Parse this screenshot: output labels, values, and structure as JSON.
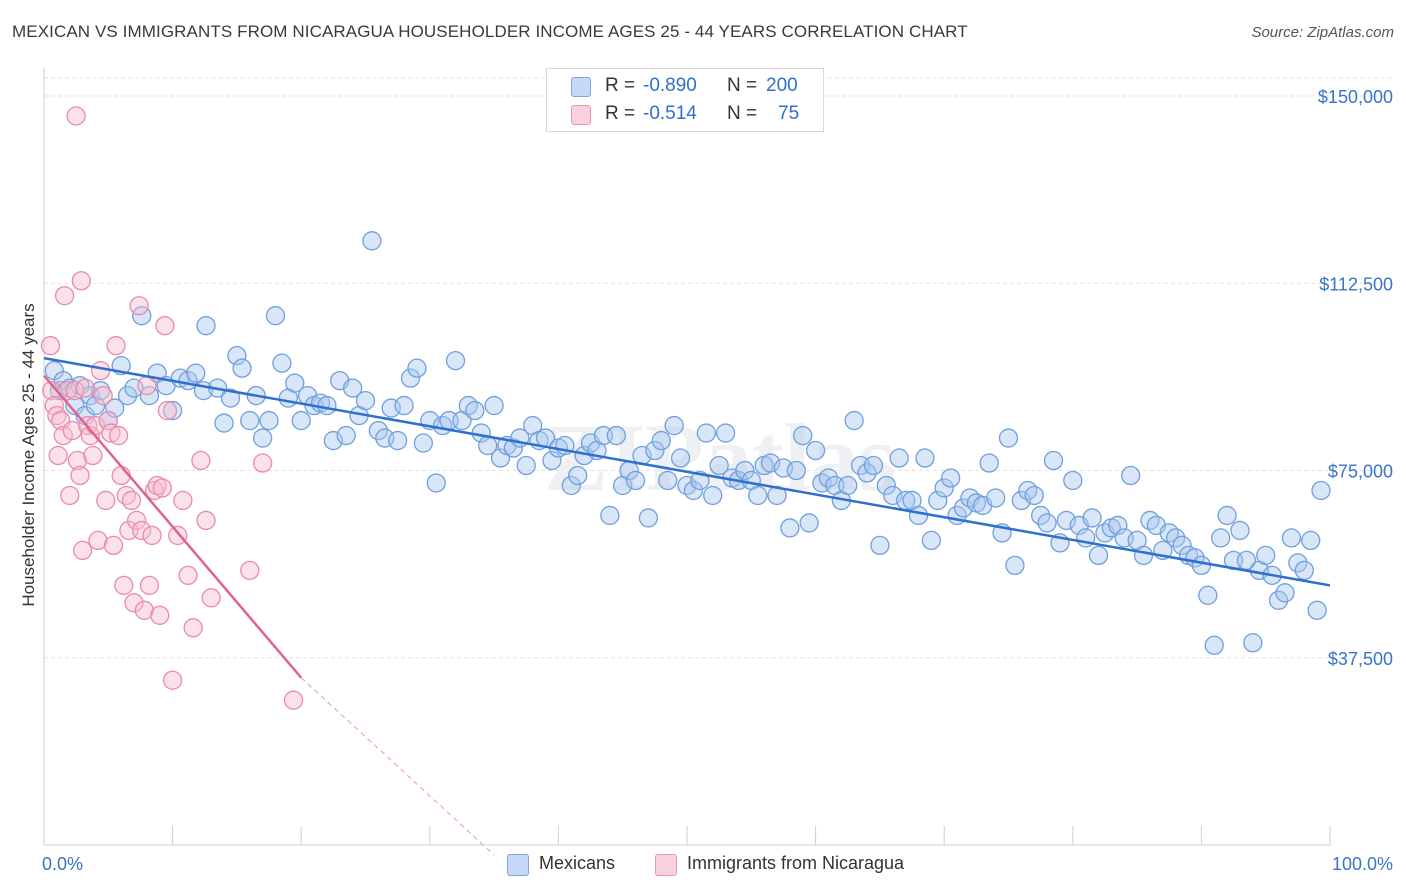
{
  "title": "MEXICAN VS IMMIGRANTS FROM NICARAGUA HOUSEHOLDER INCOME AGES 25 - 44 YEARS CORRELATION CHART",
  "source": "Source: ZipAtlas.com",
  "watermark": "ZIPatlas",
  "legend_top": {
    "rows": [
      {
        "r_label": "R =",
        "r_value": "-0.890",
        "n_label": "N =",
        "n_value": "200"
      },
      {
        "r_label": "R =",
        "r_value": "-0.514",
        "n_label": "N =",
        "n_value": "75"
      }
    ]
  },
  "colors": {
    "blue_fill": "#a9c7ef",
    "blue_stroke": "#6f9fdc",
    "blue_line": "#2f6fce",
    "pink_fill": "#f6bfd0",
    "pink_stroke": "#e98aab",
    "pink_line": "#e0628e",
    "grid": "#e2e2e2",
    "axis_text": "#3b73c9"
  },
  "chart_data": {
    "type": "scatter",
    "title": "MEXICAN VS IMMIGRANTS FROM NICARAGUA HOUSEHOLDER INCOME AGES 25 - 44 YEARS CORRELATION CHART",
    "xlabel": "",
    "ylabel": "Householder Income Ages 25 - 44 years",
    "xlim": [
      0,
      100
    ],
    "ylim": [
      0,
      155000
    ],
    "x_tick_labels": [
      "0.0%",
      "100.0%"
    ],
    "y_ticks": [
      37500,
      75000,
      112500,
      150000
    ],
    "y_tick_labels": [
      "$37,500",
      "$75,000",
      "$112,500",
      "$150,000"
    ],
    "grid": true,
    "legend_placement": "bottom",
    "series": [
      {
        "name": "Mexicans",
        "trend": {
          "x": [
            0,
            100
          ],
          "y": [
            97500,
            52000
          ]
        },
        "points": [
          [
            0.8,
            95000
          ],
          [
            1.2,
            91000
          ],
          [
            1.5,
            93000
          ],
          [
            2.0,
            91500
          ],
          [
            2.4,
            88000
          ],
          [
            2.8,
            92000
          ],
          [
            3.2,
            86000
          ],
          [
            3.6,
            90000
          ],
          [
            4.0,
            88000
          ],
          [
            4.4,
            91000
          ],
          [
            5.0,
            85000
          ],
          [
            5.5,
            87500
          ],
          [
            6.0,
            96000
          ],
          [
            6.5,
            90000
          ],
          [
            7.0,
            91500
          ],
          [
            7.6,
            106000
          ],
          [
            8.2,
            90000
          ],
          [
            8.8,
            94500
          ],
          [
            9.5,
            92000
          ],
          [
            10.0,
            87000
          ],
          [
            10.6,
            93500
          ],
          [
            11.2,
            93000
          ],
          [
            11.8,
            94500
          ],
          [
            12.4,
            91000
          ],
          [
            12.6,
            104000
          ],
          [
            13.5,
            91500
          ],
          [
            14.0,
            84500
          ],
          [
            14.5,
            89500
          ],
          [
            15.0,
            98000
          ],
          [
            15.4,
            95500
          ],
          [
            16.0,
            85000
          ],
          [
            16.5,
            90000
          ],
          [
            17.0,
            81500
          ],
          [
            17.5,
            85000
          ],
          [
            18.0,
            106000
          ],
          [
            18.5,
            96500
          ],
          [
            19.0,
            89500
          ],
          [
            19.5,
            92500
          ],
          [
            20.0,
            85000
          ],
          [
            20.5,
            90000
          ],
          [
            21.0,
            88000
          ],
          [
            21.5,
            88500
          ],
          [
            22.0,
            88000
          ],
          [
            22.5,
            81000
          ],
          [
            23.0,
            93000
          ],
          [
            23.5,
            82000
          ],
          [
            24.0,
            91500
          ],
          [
            24.5,
            86000
          ],
          [
            25.0,
            89000
          ],
          [
            25.5,
            121000
          ],
          [
            26.0,
            83000
          ],
          [
            26.5,
            81500
          ],
          [
            27.0,
            87500
          ],
          [
            27.5,
            81000
          ],
          [
            28.0,
            88000
          ],
          [
            28.5,
            93500
          ],
          [
            29.0,
            95500
          ],
          [
            29.5,
            80500
          ],
          [
            30.0,
            85000
          ],
          [
            30.5,
            72500
          ],
          [
            31.0,
            84000
          ],
          [
            31.5,
            85000
          ],
          [
            32.0,
            97000
          ],
          [
            32.5,
            85000
          ],
          [
            33.0,
            88000
          ],
          [
            33.5,
            87000
          ],
          [
            34.0,
            82500
          ],
          [
            34.5,
            80000
          ],
          [
            35.0,
            88000
          ],
          [
            35.5,
            77500
          ],
          [
            36.0,
            80000
          ],
          [
            36.5,
            79500
          ],
          [
            37.0,
            81500
          ],
          [
            37.5,
            76000
          ],
          [
            38.0,
            84000
          ],
          [
            38.5,
            81000
          ],
          [
            39.0,
            81500
          ],
          [
            39.5,
            77000
          ],
          [
            40.0,
            79500
          ],
          [
            40.5,
            80000
          ],
          [
            41.0,
            72000
          ],
          [
            41.5,
            74000
          ],
          [
            42.0,
            78000
          ],
          [
            42.5,
            80500
          ],
          [
            43.0,
            79000
          ],
          [
            43.5,
            82000
          ],
          [
            44.0,
            66000
          ],
          [
            44.5,
            82000
          ],
          [
            45.0,
            72000
          ],
          [
            45.5,
            75000
          ],
          [
            46.0,
            73000
          ],
          [
            46.5,
            78000
          ],
          [
            47.0,
            65500
          ],
          [
            47.5,
            79000
          ],
          [
            48.0,
            81000
          ],
          [
            48.5,
            73000
          ],
          [
            49.0,
            84000
          ],
          [
            49.5,
            77500
          ],
          [
            50.0,
            72000
          ],
          [
            50.5,
            71000
          ],
          [
            51.0,
            73000
          ],
          [
            51.5,
            82500
          ],
          [
            52.0,
            70000
          ],
          [
            52.5,
            76000
          ],
          [
            53.0,
            82500
          ],
          [
            53.5,
            73500
          ],
          [
            54.0,
            73000
          ],
          [
            54.5,
            75000
          ],
          [
            55.0,
            73000
          ],
          [
            55.5,
            70000
          ],
          [
            56.0,
            76000
          ],
          [
            56.5,
            76500
          ],
          [
            57.0,
            70000
          ],
          [
            57.5,
            75500
          ],
          [
            58.0,
            63500
          ],
          [
            58.5,
            75000
          ],
          [
            59.0,
            82000
          ],
          [
            59.5,
            64500
          ],
          [
            60.0,
            79000
          ],
          [
            60.5,
            72500
          ],
          [
            61.0,
            73500
          ],
          [
            61.5,
            72000
          ],
          [
            62.0,
            69000
          ],
          [
            62.5,
            72000
          ],
          [
            63.0,
            85000
          ],
          [
            63.5,
            76000
          ],
          [
            64.0,
            74500
          ],
          [
            64.5,
            76000
          ],
          [
            65.0,
            60000
          ],
          [
            65.5,
            72000
          ],
          [
            66.0,
            70000
          ],
          [
            66.5,
            77500
          ],
          [
            67.0,
            69000
          ],
          [
            67.5,
            69000
          ],
          [
            68.0,
            66000
          ],
          [
            68.5,
            77500
          ],
          [
            69.0,
            61000
          ],
          [
            69.5,
            69000
          ],
          [
            70.0,
            71500
          ],
          [
            70.5,
            73500
          ],
          [
            71.0,
            66000
          ],
          [
            71.5,
            67500
          ],
          [
            72.0,
            69500
          ],
          [
            72.5,
            68500
          ],
          [
            73.0,
            68000
          ],
          [
            73.5,
            76500
          ],
          [
            74.0,
            69500
          ],
          [
            74.5,
            62500
          ],
          [
            75.0,
            81500
          ],
          [
            75.5,
            56000
          ],
          [
            76.0,
            69000
          ],
          [
            76.5,
            71000
          ],
          [
            77.0,
            70000
          ],
          [
            77.5,
            66000
          ],
          [
            78.0,
            64500
          ],
          [
            78.5,
            77000
          ],
          [
            79.0,
            60500
          ],
          [
            79.5,
            65000
          ],
          [
            80.0,
            73000
          ],
          [
            80.5,
            64000
          ],
          [
            81.0,
            61500
          ],
          [
            81.5,
            65500
          ],
          [
            82.0,
            58000
          ],
          [
            82.5,
            62500
          ],
          [
            83.0,
            63500
          ],
          [
            83.5,
            64000
          ],
          [
            84.0,
            61500
          ],
          [
            84.5,
            74000
          ],
          [
            85.0,
            61000
          ],
          [
            85.5,
            58000
          ],
          [
            86.0,
            65000
          ],
          [
            86.5,
            64000
          ],
          [
            87.0,
            59000
          ],
          [
            87.5,
            62500
          ],
          [
            88.0,
            61500
          ],
          [
            88.5,
            60000
          ],
          [
            89.0,
            58000
          ],
          [
            89.5,
            57500
          ],
          [
            90.0,
            56000
          ],
          [
            90.5,
            50000
          ],
          [
            91.0,
            40000
          ],
          [
            91.5,
            61500
          ],
          [
            92.0,
            66000
          ],
          [
            92.5,
            57000
          ],
          [
            93.0,
            63000
          ],
          [
            93.5,
            57000
          ],
          [
            94.0,
            40500
          ],
          [
            94.5,
            55000
          ],
          [
            95.0,
            58000
          ],
          [
            95.5,
            54000
          ],
          [
            96.0,
            49000
          ],
          [
            96.5,
            50500
          ],
          [
            97.0,
            61500
          ],
          [
            97.5,
            56500
          ],
          [
            98.0,
            55000
          ],
          [
            98.5,
            61000
          ],
          [
            99.0,
            47000
          ],
          [
            99.3,
            71000
          ]
        ]
      },
      {
        "name": "Immigrants from Nicaragua",
        "trend": {
          "x": [
            0,
            20
          ],
          "y": [
            94000,
            33500
          ]
        },
        "trend_dashed": {
          "x": [
            20,
            35
          ],
          "y": [
            33500,
            -2000
          ]
        },
        "points": [
          [
            0.5,
            100000
          ],
          [
            0.6,
            91000
          ],
          [
            0.8,
            88000
          ],
          [
            1.0,
            86000
          ],
          [
            1.1,
            78000
          ],
          [
            1.3,
            85000
          ],
          [
            1.5,
            82000
          ],
          [
            1.6,
            110000
          ],
          [
            1.8,
            91000
          ],
          [
            2.0,
            70000
          ],
          [
            2.2,
            83000
          ],
          [
            2.4,
            91000
          ],
          [
            2.5,
            146000
          ],
          [
            2.6,
            77000
          ],
          [
            2.8,
            74000
          ],
          [
            2.9,
            113000
          ],
          [
            3.0,
            59000
          ],
          [
            3.2,
            91500
          ],
          [
            3.4,
            84000
          ],
          [
            3.6,
            82000
          ],
          [
            3.8,
            78000
          ],
          [
            4.0,
            84000
          ],
          [
            4.2,
            61000
          ],
          [
            4.4,
            95000
          ],
          [
            4.6,
            90000
          ],
          [
            4.8,
            69000
          ],
          [
            5.0,
            85000
          ],
          [
            5.2,
            82500
          ],
          [
            5.4,
            60000
          ],
          [
            5.6,
            100000
          ],
          [
            5.8,
            82000
          ],
          [
            6.0,
            74000
          ],
          [
            6.2,
            52000
          ],
          [
            6.4,
            70000
          ],
          [
            6.6,
            63000
          ],
          [
            6.8,
            69000
          ],
          [
            7.0,
            48500
          ],
          [
            7.2,
            65000
          ],
          [
            7.4,
            108000
          ],
          [
            7.6,
            63000
          ],
          [
            7.8,
            47000
          ],
          [
            8.0,
            92000
          ],
          [
            8.2,
            52000
          ],
          [
            8.4,
            62000
          ],
          [
            8.6,
            71000
          ],
          [
            8.8,
            72000
          ],
          [
            9.0,
            46000
          ],
          [
            9.2,
            71500
          ],
          [
            9.4,
            104000
          ],
          [
            9.6,
            87000
          ],
          [
            10.0,
            33000
          ],
          [
            10.4,
            62000
          ],
          [
            10.8,
            69000
          ],
          [
            11.2,
            54000
          ],
          [
            11.6,
            43500
          ],
          [
            12.2,
            77000
          ],
          [
            12.6,
            65000
          ],
          [
            13.0,
            49500
          ],
          [
            16.0,
            55000
          ],
          [
            17.0,
            76500
          ],
          [
            19.4,
            29000
          ]
        ]
      }
    ]
  },
  "bottom_legend": [
    {
      "label": "Mexicans"
    },
    {
      "label": "Immigrants from Nicaragua"
    }
  ]
}
